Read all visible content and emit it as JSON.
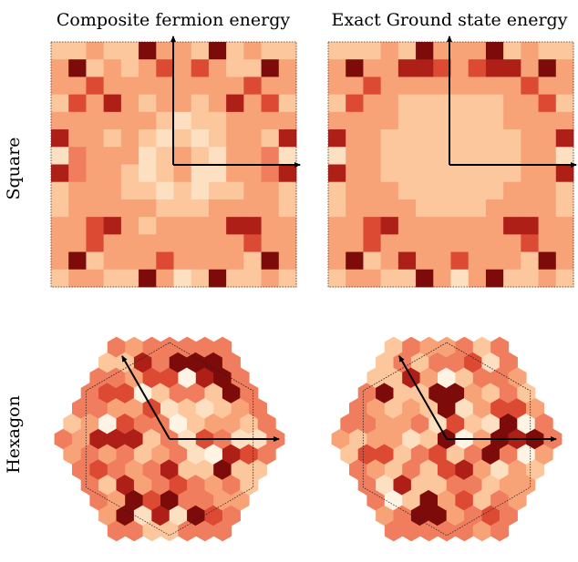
{
  "colors": {
    "palette": [
      "#fff3e4",
      "#fde0c2",
      "#fcc79c",
      "#f8a278",
      "#f07e5e",
      "#dc4a34",
      "#ad1f17",
      "#7c0b0a"
    ],
    "axis": "#000000"
  },
  "chart_data": [
    {
      "type": "heatmap",
      "title": "Composite fermion energy",
      "row_label": "Square",
      "lattice": "square",
      "grid": [
        [
          2,
          2,
          3,
          2,
          2,
          7,
          3,
          3,
          2,
          7,
          2,
          3,
          2,
          2
        ],
        [
          3,
          7,
          2,
          3,
          2,
          3,
          5,
          3,
          5,
          3,
          2,
          2,
          7,
          3
        ],
        [
          3,
          3,
          5,
          3,
          3,
          3,
          3,
          3,
          3,
          3,
          3,
          5,
          3,
          3
        ],
        [
          2,
          5,
          3,
          6,
          3,
          2,
          3,
          3,
          2,
          3,
          6,
          3,
          5,
          2
        ],
        [
          3,
          3,
          3,
          3,
          3,
          3,
          2,
          1,
          2,
          2,
          3,
          3,
          3,
          3
        ],
        [
          6,
          3,
          3,
          2,
          3,
          2,
          1,
          2,
          1,
          2,
          3,
          3,
          2,
          6
        ],
        [
          1,
          4,
          3,
          3,
          3,
          1,
          2,
          3,
          2,
          1,
          3,
          3,
          4,
          1
        ],
        [
          6,
          4,
          3,
          3,
          2,
          1,
          2,
          3,
          1,
          1,
          3,
          3,
          4,
          6
        ],
        [
          2,
          3,
          3,
          3,
          2,
          2,
          1,
          2,
          1,
          2,
          2,
          3,
          3,
          2
        ],
        [
          2,
          3,
          3,
          3,
          3,
          3,
          2,
          2,
          2,
          3,
          3,
          3,
          3,
          2
        ],
        [
          3,
          3,
          5,
          6,
          3,
          2,
          3,
          3,
          3,
          3,
          6,
          6,
          3,
          3
        ],
        [
          3,
          3,
          5,
          3,
          3,
          3,
          3,
          3,
          3,
          3,
          3,
          5,
          3,
          3
        ],
        [
          3,
          7,
          2,
          3,
          3,
          3,
          5,
          3,
          3,
          3,
          3,
          2,
          7,
          3
        ],
        [
          2,
          3,
          3,
          2,
          2,
          7,
          3,
          1,
          2,
          7,
          2,
          2,
          3,
          2
        ]
      ]
    },
    {
      "type": "heatmap",
      "title": "Exact Ground state energy",
      "row_label": "",
      "lattice": "square",
      "grid": [
        [
          2,
          2,
          2,
          3,
          2,
          7,
          3,
          3,
          3,
          7,
          2,
          3,
          2,
          2
        ],
        [
          3,
          7,
          3,
          3,
          6,
          6,
          5,
          3,
          5,
          6,
          6,
          3,
          7,
          3
        ],
        [
          3,
          3,
          5,
          3,
          3,
          3,
          3,
          3,
          3,
          3,
          3,
          5,
          3,
          3
        ],
        [
          2,
          5,
          3,
          3,
          2,
          2,
          2,
          2,
          2,
          2,
          3,
          3,
          5,
          2
        ],
        [
          3,
          3,
          3,
          3,
          2,
          2,
          2,
          2,
          2,
          2,
          3,
          3,
          3,
          3
        ],
        [
          6,
          3,
          3,
          2,
          2,
          2,
          2,
          2,
          2,
          2,
          2,
          3,
          3,
          6
        ],
        [
          1,
          3,
          3,
          2,
          2,
          2,
          2,
          2,
          2,
          2,
          2,
          3,
          3,
          1
        ],
        [
          6,
          3,
          3,
          2,
          2,
          2,
          2,
          2,
          2,
          2,
          2,
          3,
          3,
          6
        ],
        [
          2,
          3,
          3,
          3,
          2,
          2,
          2,
          2,
          2,
          2,
          3,
          3,
          3,
          2
        ],
        [
          2,
          3,
          3,
          3,
          3,
          2,
          2,
          2,
          2,
          3,
          3,
          3,
          3,
          2
        ],
        [
          3,
          3,
          5,
          6,
          3,
          3,
          3,
          3,
          3,
          3,
          6,
          6,
          3,
          3
        ],
        [
          3,
          3,
          5,
          3,
          3,
          3,
          3,
          3,
          3,
          3,
          3,
          5,
          3,
          3
        ],
        [
          3,
          7,
          2,
          3,
          6,
          3,
          3,
          5,
          3,
          3,
          3,
          2,
          7,
          3
        ],
        [
          2,
          3,
          3,
          2,
          2,
          7,
          3,
          1,
          3,
          7,
          2,
          2,
          3,
          2
        ]
      ]
    },
    {
      "type": "heatmap",
      "title": "",
      "row_label": "Hexagon",
      "lattice": "hexagon",
      "seed": 7
    },
    {
      "type": "heatmap",
      "title": "",
      "row_label": "",
      "lattice": "hexagon",
      "seed": 11
    }
  ]
}
